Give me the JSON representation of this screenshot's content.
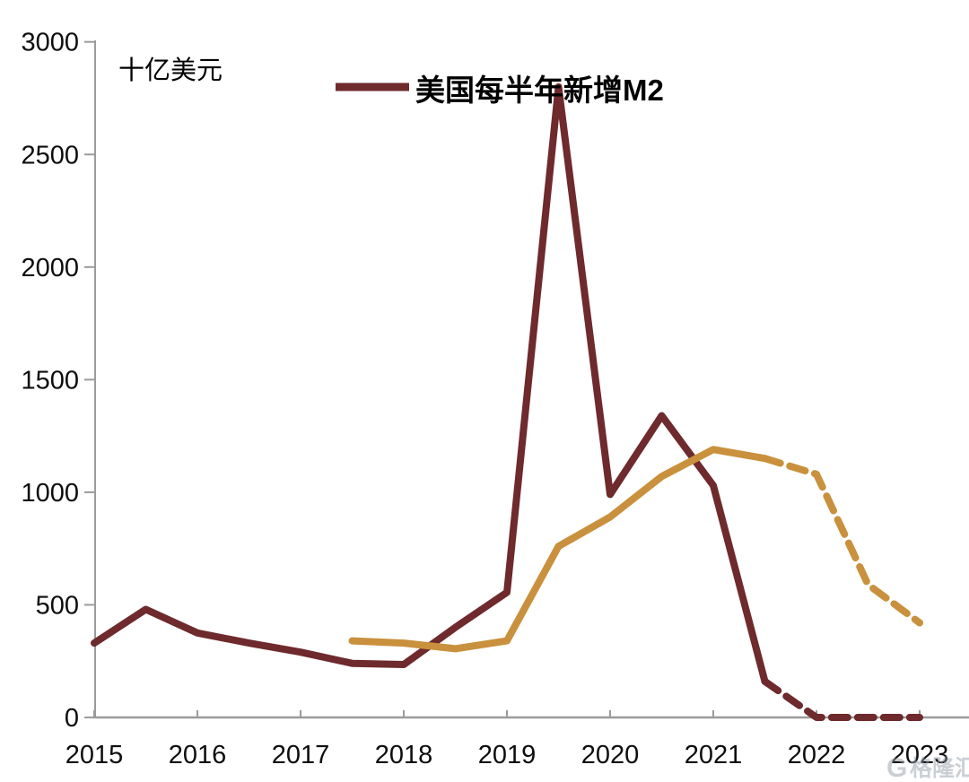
{
  "chart_data": {
    "type": "line",
    "title": "",
    "unit_label": "十亿美元",
    "legend": [
      {
        "label": "美国每半年新增M2",
        "color": "#6E2A2C"
      }
    ],
    "legend_position": "top-center",
    "grid": false,
    "axis_color": "#9B9B9B",
    "text_color": "#0D0D0D",
    "xlim": [
      2015,
      2023
    ],
    "ylim": [
      0,
      3000
    ],
    "x_ticks": [
      2015,
      2016,
      2017,
      2018,
      2019,
      2020,
      2021,
      2022,
      2023
    ],
    "x_tick_labels": [
      "2015",
      "2016",
      "2017",
      "2018",
      "2019",
      "2020",
      "2021",
      "2022",
      "2023"
    ],
    "y_ticks": [
      0,
      500,
      1000,
      1500,
      2000,
      2500,
      3000
    ],
    "y_tick_labels": [
      "0",
      "500",
      "1000",
      "1500",
      "2000",
      "2500",
      "3000"
    ],
    "series": [
      {
        "id": "us-semiannual-new-m2",
        "name": "美国每半年新增M2",
        "color": "#6E2A2C",
        "line_style": "solid-then-dashed",
        "solid_until_x": 2021.5,
        "x": [
          2015,
          2015.5,
          2016,
          2016.5,
          2017,
          2017.5,
          2018,
          2018.5,
          2019,
          2019.5,
          2020,
          2020.5,
          2021,
          2021.5,
          2022,
          2022.5,
          2023
        ],
        "values": [
          330,
          480,
          375,
          330,
          290,
          240,
          235,
          400,
          555,
          2800,
          990,
          1340,
          1030,
          160,
          0,
          0,
          0
        ]
      },
      {
        "id": "unlabeled-gold-series",
        "name": "",
        "color": "#C9913D",
        "line_style": "solid-then-dashed",
        "solid_until_x": 2021.5,
        "x": [
          2017.5,
          2018,
          2018.5,
          2019,
          2019.5,
          2020,
          2020.5,
          2021,
          2021.5,
          2022,
          2022.5,
          2023
        ],
        "values": [
          340,
          330,
          305,
          340,
          760,
          890,
          1070,
          1190,
          1150,
          1080,
          590,
          420
        ]
      }
    ]
  },
  "watermark": {
    "logo": "G",
    "text": "格隆汇"
  }
}
